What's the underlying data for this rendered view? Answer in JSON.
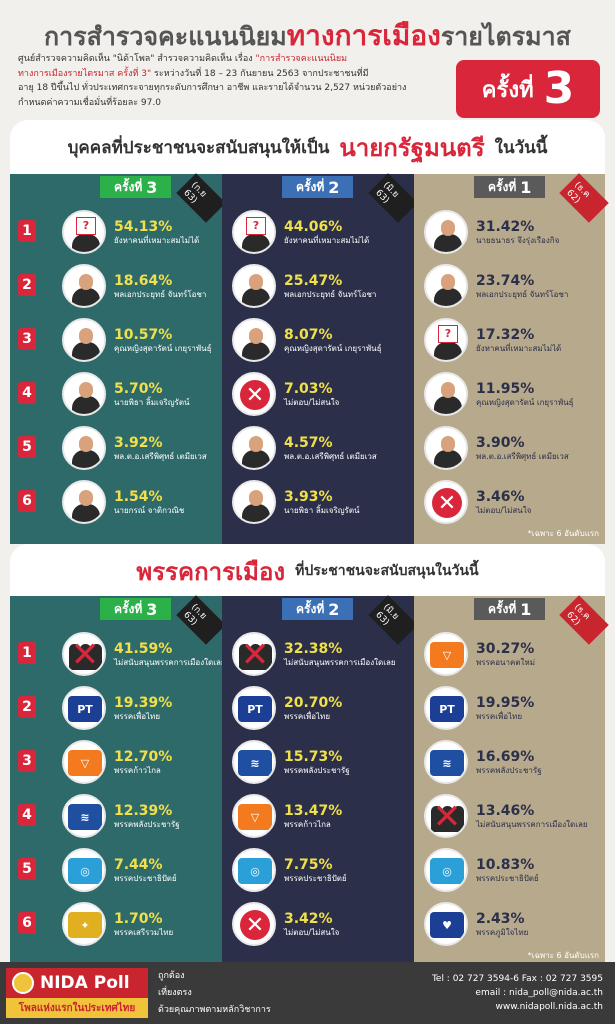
{
  "header": {
    "title_a": "การสำรวจคะแนนนิยม",
    "title_b": "ทางการเมือง",
    "title_c": "รายไตรมาส",
    "desc_1a": "ศูนย์สำรวจความคิดเห็น \"นิด้าโพล\" สำรวจความคิดเห็น เรื่อง",
    "desc_1b": "\"การสำรวจคะแนนนิยม",
    "desc_2a": "ทางการเมืองรายไตรมาส ครั้งที่ 3\"",
    "desc_2b": "ระหว่างวันที่ 18 – 23 กันยายน 2563 จากประชาชนที่มี",
    "desc_3": "อายุ 18 ปีขึ้นไป ทั่วประเทศกระจายทุกระดับการศึกษา อาชีพ และรายได้จำนวน 2,527 หน่วยตัวอย่าง",
    "desc_4": "กำหนดค่าความเชื่อมั่นที่ร้อยละ 97.0",
    "badge_label": "ครั้งที่",
    "badge_number": "3"
  },
  "section1": {
    "lead": "บุคคลที่ประชาชนจะสนับสนุนให้เป็น",
    "highlight": "นายกรัฐมนตรี",
    "tail": "ในวันนี้",
    "note": "*เฉพาะ 6 อันดับแรก"
  },
  "section2": {
    "highlight": "พรรคการเมือง",
    "tail": "ที่ประชาชนจะสนับสนุนในวันนี้",
    "note": "*เฉพาะ 6 อันดับแรก"
  },
  "round_label": "ครั้งที่",
  "rounds": [
    {
      "number": "3",
      "date": "(ก.ย 63)"
    },
    {
      "number": "2",
      "date": "(มิ.ย 63)"
    },
    {
      "number": "1",
      "date": "(ธ.ค 62)"
    }
  ],
  "ranks": [
    "1",
    "2",
    "3",
    "4",
    "5",
    "6"
  ],
  "pm": {
    "r3": [
      {
        "pct": "54.13%",
        "name": "ยังหาคนที่เหมาะสมไม่ได้",
        "icon": "question-person-icon"
      },
      {
        "pct": "18.64%",
        "name": "พลเอกประยุทธ์ จันทร์โอชา",
        "icon": "portrait-icon"
      },
      {
        "pct": "10.57%",
        "name": "คุณหญิงสุดารัตน์ เกยุราพันธุ์",
        "icon": "portrait-icon"
      },
      {
        "pct": "5.70%",
        "name": "นายพิธา ลิ้มเจริญรัตน์",
        "icon": "portrait-icon"
      },
      {
        "pct": "3.92%",
        "name": "พล.ต.อ.เสรีพิศุทธ์ เตมียเวส",
        "icon": "portrait-icon"
      },
      {
        "pct": "1.54%",
        "name": "นายกรณ์ จาติกวณิช",
        "icon": "portrait-icon"
      }
    ],
    "r2": [
      {
        "pct": "44.06%",
        "name": "ยังหาคนที่เหมาะสมไม่ได้",
        "icon": "question-person-icon"
      },
      {
        "pct": "25.47%",
        "name": "พลเอกประยุทธ์ จันทร์โอชา",
        "icon": "portrait-icon"
      },
      {
        "pct": "8.07%",
        "name": "คุณหญิงสุดารัตน์ เกยุราพันธุ์",
        "icon": "portrait-icon"
      },
      {
        "pct": "7.03%",
        "name": "ไม่ตอบ/ไม่สนใจ",
        "icon": "x-mark-icon"
      },
      {
        "pct": "4.57%",
        "name": "พล.ต.อ.เสรีพิศุทธ์ เตมียเวส",
        "icon": "portrait-icon"
      },
      {
        "pct": "3.93%",
        "name": "นายพิธา ลิ้มเจริญรัตน์",
        "icon": "portrait-icon"
      }
    ],
    "r1": [
      {
        "pct": "31.42%",
        "name": "นายธนาธร จึงรุ่งเรืองกิจ",
        "icon": "portrait-icon"
      },
      {
        "pct": "23.74%",
        "name": "พลเอกประยุทธ์ จันทร์โอชา",
        "icon": "portrait-icon"
      },
      {
        "pct": "17.32%",
        "name": "ยังหาคนที่เหมาะสมไม่ได้",
        "icon": "question-person-icon"
      },
      {
        "pct": "11.95%",
        "name": "คุณหญิงสุดารัตน์ เกยุราพันธุ์",
        "icon": "portrait-icon"
      },
      {
        "pct": "3.90%",
        "name": "พล.ต.อ.เสรีพิศุทธ์ เตมียเวส",
        "icon": "portrait-icon"
      },
      {
        "pct": "3.46%",
        "name": "ไม่ตอบ/ไม่สนใจ",
        "icon": "x-mark-icon"
      }
    ]
  },
  "party": {
    "r3": [
      {
        "pct": "41.59%",
        "name": "ไม่สนับสนุนพรรคการเมืองใดเลย",
        "icon": "no-party-group-icon"
      },
      {
        "pct": "19.39%",
        "name": "พรรคเพื่อไทย",
        "icon": "pheu-thai-logo-icon"
      },
      {
        "pct": "12.70%",
        "name": "พรรคก้าวไกล",
        "icon": "move-forward-logo-icon"
      },
      {
        "pct": "12.39%",
        "name": "พรรคพลังประชารัฐ",
        "icon": "palang-pracharath-logo-icon"
      },
      {
        "pct": "7.44%",
        "name": "พรรคประชาธิปัตย์",
        "icon": "democrat-logo-icon"
      },
      {
        "pct": "1.70%",
        "name": "พรรคเสรีรวมไทย",
        "icon": "seri-ruam-thai-logo-icon"
      }
    ],
    "r2": [
      {
        "pct": "32.38%",
        "name": "ไม่สนับสนุนพรรคการเมืองใดเลย",
        "icon": "no-party-group-icon"
      },
      {
        "pct": "20.70%",
        "name": "พรรคเพื่อไทย",
        "icon": "pheu-thai-logo-icon"
      },
      {
        "pct": "15.73%",
        "name": "พรรคพลังประชารัฐ",
        "icon": "palang-pracharath-logo-icon"
      },
      {
        "pct": "13.47%",
        "name": "พรรคก้าวไกล",
        "icon": "move-forward-logo-icon"
      },
      {
        "pct": "7.75%",
        "name": "พรรคประชาธิปัตย์",
        "icon": "democrat-logo-icon"
      },
      {
        "pct": "3.42%",
        "name": "ไม่ตอบ/ไม่สนใจ",
        "icon": "x-mark-icon"
      }
    ],
    "r1": [
      {
        "pct": "30.27%",
        "name": "พรรคอนาคตใหม่",
        "icon": "future-forward-logo-icon"
      },
      {
        "pct": "19.95%",
        "name": "พรรคเพื่อไทย",
        "icon": "pheu-thai-logo-icon"
      },
      {
        "pct": "16.69%",
        "name": "พรรคพลังประชารัฐ",
        "icon": "palang-pracharath-logo-icon"
      },
      {
        "pct": "13.46%",
        "name": "ไม่สนับสนุนพรรคการเมืองใดเลย",
        "icon": "no-party-group-icon"
      },
      {
        "pct": "10.83%",
        "name": "พรรคประชาธิปัตย์",
        "icon": "democrat-logo-icon"
      },
      {
        "pct": "2.43%",
        "name": "พรรคภูมิใจไทย",
        "icon": "bhumjaithai-logo-icon"
      }
    ]
  },
  "footer": {
    "brand": "NIDA Poll",
    "tagline": "โพลแห่งแรกในประเทศไทย",
    "tags": [
      "ถูกต้อง",
      "เที่ยงตรง",
      "ด้วยคุณภาพตามหลักวิชาการ"
    ],
    "tel": "Tel : 02 727 3594-6 Fax : 02 727 3595",
    "email": "email : nida_poll@nida.ac.th",
    "web": "www.nidapoll.nida.ac.th"
  },
  "colors": {
    "accent": "#d9263a",
    "round3": "#2f6a6b",
    "round2": "#2b2f4a",
    "round1": "#b7a98c"
  }
}
